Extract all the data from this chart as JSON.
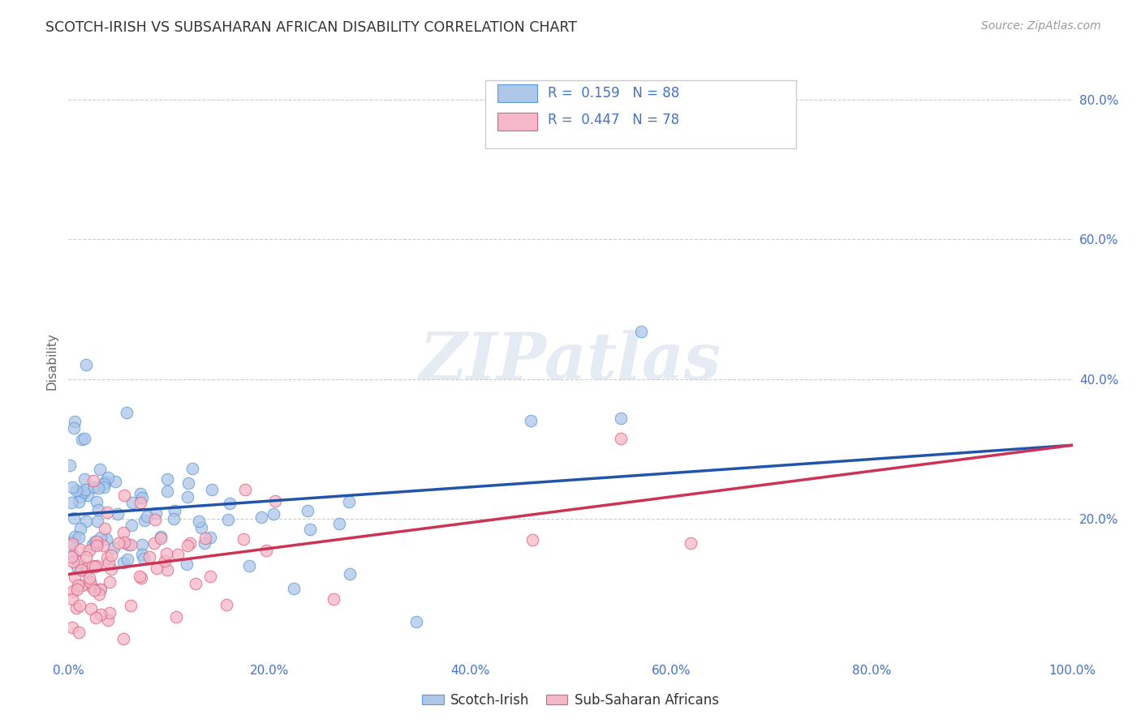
{
  "title": "SCOTCH-IRISH VS SUBSAHARAN AFRICAN DISABILITY CORRELATION CHART",
  "source": "Source: ZipAtlas.com",
  "ylabel": "Disability",
  "watermark": "ZIPatlas",
  "blue_R": 0.159,
  "blue_N": 88,
  "pink_R": 0.447,
  "pink_N": 78,
  "blue_color": "#aec6e8",
  "pink_color": "#f4b8c8",
  "blue_edge_color": "#5b9bd5",
  "pink_edge_color": "#e06080",
  "blue_line_color": "#2255aa",
  "pink_line_color": "#cc3355",
  "xlim": [
    0.0,
    1.0
  ],
  "ylim": [
    0.0,
    0.85
  ],
  "blue_line_start_y": 0.205,
  "blue_line_end_y": 0.305,
  "pink_line_start_y": 0.12,
  "pink_line_end_y": 0.305,
  "tick_color": "#4472c4",
  "grid_color": "#cccccc",
  "title_color": "#333333",
  "source_color": "#999999",
  "watermark_color": "#d0dce8"
}
